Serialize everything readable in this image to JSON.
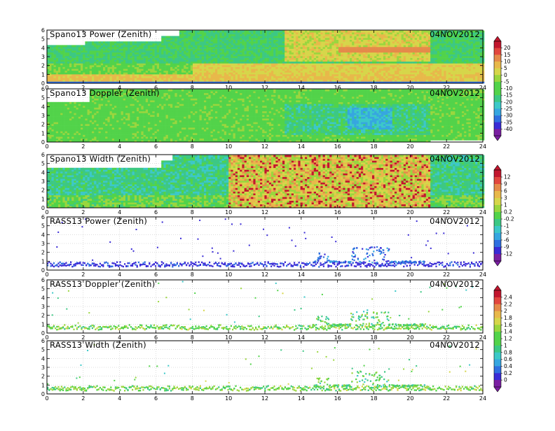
{
  "date": "04NOV2012",
  "x_ticks": [
    "0",
    "2",
    "4",
    "6",
    "8",
    "10",
    "12",
    "14",
    "16",
    "18",
    "20",
    "22",
    "24"
  ],
  "y_ticks": [
    "0",
    "1",
    "2",
    "3",
    "4",
    "5",
    "6"
  ],
  "panels": [
    {
      "title": "Spano13 Power (Zenith)",
      "scale": "power",
      "kind": "full"
    },
    {
      "title": "Spano13 Doppler (Zenith)",
      "scale": "power",
      "kind": "full"
    },
    {
      "title": "Spano13 Width (Zenith)",
      "scale": "width",
      "kind": "full"
    },
    {
      "title": "RASS13 Power (Zenith)",
      "scale": "width",
      "kind": "sparse"
    },
    {
      "title": "RASS13 Doppler (Zenith)",
      "scale": "rass",
      "kind": "sparse"
    },
    {
      "title": "RASS13 Width (Zenith)",
      "scale": "rass",
      "kind": "sparse"
    }
  ],
  "colorbars": [
    {
      "id": "power",
      "labels": [
        "20",
        "15",
        "10",
        "5",
        "0",
        "-5",
        "-10",
        "-15",
        "-20",
        "-25",
        "-30",
        "-35",
        "-40"
      ]
    },
    {
      "id": "width",
      "labels": [
        "12",
        "9",
        "6",
        "3",
        "1",
        "0.2",
        "-0.2",
        "-1",
        "-3",
        "-6",
        "-9",
        "-12"
      ]
    },
    {
      "id": "rass",
      "labels": [
        "2.4",
        "2.2",
        "2",
        "1.8",
        "1.6",
        "1.4",
        "1.2",
        "1",
        "0.8",
        "0.6",
        "0.4",
        "0.2",
        "0"
      ]
    }
  ],
  "palette": [
    "#7a1fa2",
    "#3a2bd6",
    "#2f6fe0",
    "#36a6e0",
    "#3cc8c8",
    "#3cc884",
    "#52d34a",
    "#9ad63e",
    "#d6d64a",
    "#e8b84a",
    "#e58a4a",
    "#e2463e",
    "#c2162e"
  ],
  "chart_data": {
    "type": "heatmap",
    "x_axis": {
      "range": [
        0,
        24
      ],
      "ticks": [
        0,
        2,
        4,
        6,
        8,
        10,
        12,
        14,
        16,
        18,
        20,
        22,
        24
      ]
    },
    "y_axis": {
      "range": [
        0,
        6
      ],
      "ticks": [
        0,
        1,
        2,
        3,
        4,
        5,
        6
      ]
    },
    "grid": true,
    "date": "04NOV2012",
    "panels": [
      {
        "title": "Spano13 Power (Zenith)",
        "colorbar": [
          20,
          15,
          10,
          5,
          0,
          -5,
          -10,
          -15,
          -20,
          -25,
          -30,
          -35,
          -40
        ]
      },
      {
        "title": "Spano13 Doppler (Zenith)",
        "colorbar": [
          20,
          15,
          10,
          5,
          0,
          -5,
          -10,
          -15,
          -20,
          -25,
          -30,
          -35,
          -40
        ]
      },
      {
        "title": "Spano13 Width (Zenith)",
        "colorbar": [
          12,
          9,
          6,
          3,
          1,
          0.2,
          -0.2,
          -1,
          -3,
          -6,
          -9,
          -12
        ]
      },
      {
        "title": "RASS13 Power (Zenith)",
        "colorbar": [
          12,
          9,
          6,
          3,
          1,
          0.2,
          -0.2,
          -1,
          -3,
          -6,
          -9,
          -12
        ]
      },
      {
        "title": "RASS13 Doppler (Zenith)",
        "colorbar": [
          2.4,
          2.2,
          2,
          1.8,
          1.6,
          1.4,
          1.2,
          1,
          0.8,
          0.6,
          0.4,
          0.2,
          0
        ]
      },
      {
        "title": "RASS13 Width (Zenith)",
        "colorbar": [
          2.4,
          2.2,
          2,
          1.8,
          1.6,
          1.4,
          1.2,
          1,
          0.8,
          0.6,
          0.4,
          0.2,
          0
        ]
      }
    ]
  }
}
